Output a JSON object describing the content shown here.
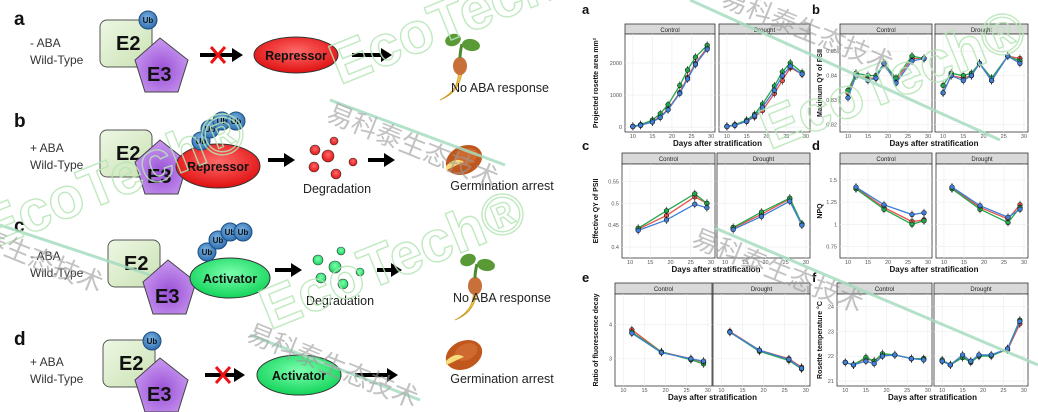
{
  "diagram": {
    "panels": [
      {
        "letter": "a",
        "condition": "- ABA",
        "genotype": "Wild-Type",
        "ub": [
          "Ub"
        ],
        "target": "Repressor",
        "blocked": true,
        "degradation": "",
        "outcome": "No ABA response"
      },
      {
        "letter": "b",
        "condition": "+ ABA",
        "genotype": "Wild-Type",
        "ub": [
          "Ub",
          "Ub",
          "Ub",
          "Ub"
        ],
        "target": "Repressor",
        "blocked": false,
        "degradation": "Degradation",
        "outcome": "Germination arrest"
      },
      {
        "letter": "c",
        "condition": "- ABA",
        "genotype": "Wild-Type",
        "ub": [
          "Ub",
          "Ub",
          "Ub",
          "Ub"
        ],
        "target": "Activator",
        "blocked": false,
        "degradation": "Degradation",
        "outcome": "No ABA response"
      },
      {
        "letter": "d",
        "condition": "+ ABA",
        "genotype": "Wild-Type",
        "ub": [
          "Ub"
        ],
        "target": "Activator",
        "blocked": true,
        "degradation": "",
        "outcome": "Germination arrest"
      }
    ],
    "e2_label": "E2",
    "e3_label": "E3",
    "colors": {
      "e2": "#d9ecc8",
      "e3": "#b77be0",
      "ub": "#4f8fcb",
      "repressor": "#ee2222",
      "activator": "#22dd66",
      "block": "#ee1111"
    }
  },
  "watermark": {
    "brand": "EcoTech®",
    "chinese": "易科泰生态技术"
  },
  "series_colors": [
    "#e8534a",
    "#22a84a",
    "#3f7fd8"
  ],
  "chart_data": [
    {
      "letter": "a",
      "type": "line",
      "ylabel": "Projected rosette area mm²",
      "xlabel": "Days after stratification",
      "facets": [
        "Control",
        "Drought"
      ],
      "xlim": [
        8,
        31
      ],
      "xticks": [
        10,
        15,
        20,
        25,
        30
      ],
      "ylim": [
        -150,
        2900
      ],
      "yticks": [
        0,
        1000,
        2000
      ],
      "x": [
        10,
        12,
        15,
        17,
        19,
        22,
        24,
        26,
        29
      ],
      "values": {
        "Control": [
          [
            20,
            60,
            170,
            330,
            560,
            1080,
            1550,
            1990,
            2470
          ],
          [
            30,
            80,
            220,
            420,
            700,
            1300,
            1780,
            2180,
            2550
          ],
          [
            20,
            60,
            160,
            300,
            540,
            1050,
            1500,
            1950,
            2430
          ]
        ],
        "Drought": [
          [
            20,
            60,
            180,
            320,
            520,
            1050,
            1450,
            1850,
            1650
          ],
          [
            30,
            80,
            220,
            400,
            720,
            1280,
            1720,
            2000,
            1700
          ],
          [
            20,
            60,
            180,
            350,
            620,
            1150,
            1600,
            1900,
            1650
          ]
        ]
      }
    },
    {
      "letter": "b",
      "type": "line",
      "ylabel": "Maximum QY of PSII",
      "xlabel": "Days after stratification",
      "facets": [
        "Control",
        "Drought"
      ],
      "xlim": [
        8,
        31
      ],
      "xticks": [
        10,
        15,
        20,
        25,
        30
      ],
      "ylim": [
        0.817,
        0.857
      ],
      "yticks": [
        0.82,
        0.83,
        0.84,
        0.85
      ],
      "x": [
        10,
        12,
        15,
        17,
        19,
        22,
        26,
        29
      ],
      "values": {
        "Control": [
          [
            0.833,
            0.84,
            0.839,
            0.839,
            0.845,
            0.838,
            0.847,
            0.847
          ],
          [
            0.834,
            0.841,
            0.84,
            0.84,
            0.845,
            0.839,
            0.848,
            0.847
          ],
          [
            0.831,
            0.84,
            0.838,
            0.839,
            0.845,
            0.837,
            0.846,
            0.847
          ]
        ],
        "Drought": [
          [
            0.833,
            0.84,
            0.839,
            0.84,
            0.845,
            0.838,
            0.848,
            0.847
          ],
          [
            0.836,
            0.841,
            0.84,
            0.841,
            0.845,
            0.839,
            0.848,
            0.846
          ],
          [
            0.833,
            0.84,
            0.838,
            0.84,
            0.845,
            0.838,
            0.848,
            0.845
          ]
        ]
      }
    },
    {
      "letter": "c",
      "type": "line",
      "ylabel": "Effective QY of PSII",
      "xlabel": "Days after stratification",
      "facets": [
        "Control",
        "Drought"
      ],
      "xlim": [
        8,
        31
      ],
      "xticks": [
        10,
        15,
        20,
        25,
        30
      ],
      "ylim": [
        0.375,
        0.59
      ],
      "yticks": [
        0.4,
        0.45,
        0.5,
        0.55
      ],
      "x": [
        12,
        19,
        26,
        29
      ],
      "values": {
        "Control": [
          [
            0.441,
            0.472,
            0.515,
            0.5
          ],
          [
            0.443,
            0.483,
            0.522,
            0.5
          ],
          [
            0.438,
            0.462,
            0.498,
            0.49
          ]
        ],
        "Drought": [
          [
            0.443,
            0.475,
            0.51,
            0.452
          ],
          [
            0.445,
            0.48,
            0.512,
            0.453
          ],
          [
            0.44,
            0.47,
            0.505,
            0.45
          ]
        ]
      }
    },
    {
      "letter": "d",
      "type": "line",
      "ylabel": "NPQ",
      "xlabel": "Days after stratification",
      "facets": [
        "Control",
        "Drought"
      ],
      "xlim": [
        8,
        31
      ],
      "xticks": [
        10,
        15,
        20,
        25,
        30
      ],
      "ylim": [
        0.62,
        1.68
      ],
      "yticks": [
        0.75,
        1.0,
        1.25,
        1.5
      ],
      "x": [
        12,
        19,
        26,
        29
      ],
      "values": {
        "Control": [
          [
            1.41,
            1.19,
            1.03,
            1.05
          ],
          [
            1.4,
            1.17,
            1.0,
            1.04
          ],
          [
            1.42,
            1.22,
            1.11,
            1.13
          ]
        ],
        "Drought": [
          [
            1.41,
            1.19,
            1.06,
            1.22
          ],
          [
            1.4,
            1.17,
            1.02,
            1.19
          ],
          [
            1.42,
            1.21,
            1.08,
            1.17
          ]
        ]
      }
    },
    {
      "letter": "e",
      "type": "line",
      "ylabel": "Ratio of fluorescence decay",
      "xlabel": "Days after stratification",
      "facets": [
        "Control",
        "Drought"
      ],
      "xlim": [
        8,
        31
      ],
      "xticks": [
        10,
        15,
        20,
        25,
        30
      ],
      "ylim": [
        2.2,
        4.9
      ],
      "yticks": [
        3,
        4
      ],
      "x": [
        12,
        19,
        26,
        29
      ],
      "values": {
        "Control": [
          [
            3.85,
            3.2,
            3.0,
            2.9
          ],
          [
            3.78,
            3.2,
            2.97,
            2.85
          ],
          [
            3.75,
            3.18,
            3.0,
            2.93
          ]
        ],
        "Drought": [
          [
            3.8,
            3.25,
            3.0,
            2.75
          ],
          [
            3.78,
            3.22,
            2.95,
            2.7
          ],
          [
            3.78,
            3.25,
            2.98,
            2.72
          ]
        ]
      }
    },
    {
      "letter": "f",
      "type": "line",
      "ylabel": "Rosette temperature °C",
      "xlabel": "Days after stratification",
      "facets": [
        "Control",
        "Drought"
      ],
      "xlim": [
        8,
        31
      ],
      "xticks": [
        10,
        15,
        20,
        25,
        30
      ],
      "ylim": [
        20.8,
        24.5
      ],
      "yticks": [
        21,
        22,
        23,
        24
      ],
      "x": [
        10,
        12,
        15,
        17,
        19,
        22,
        26,
        29
      ],
      "values": {
        "Control": [
          [
            21.75,
            21.65,
            21.9,
            21.8,
            22.05,
            22.05,
            21.9,
            21.9
          ],
          [
            21.75,
            21.65,
            21.95,
            21.8,
            22.1,
            22.05,
            21.9,
            21.9
          ],
          [
            21.75,
            21.65,
            21.8,
            21.7,
            22.0,
            22.05,
            21.9,
            21.85
          ]
        ],
        "Drought": [
          [
            21.8,
            21.65,
            21.95,
            21.8,
            22.0,
            22.05,
            22.25,
            23.3
          ],
          [
            21.85,
            21.65,
            21.95,
            21.75,
            22.0,
            22.0,
            22.3,
            23.45
          ],
          [
            21.8,
            21.65,
            22.05,
            21.8,
            22.05,
            22.05,
            22.3,
            23.4
          ]
        ]
      }
    }
  ]
}
